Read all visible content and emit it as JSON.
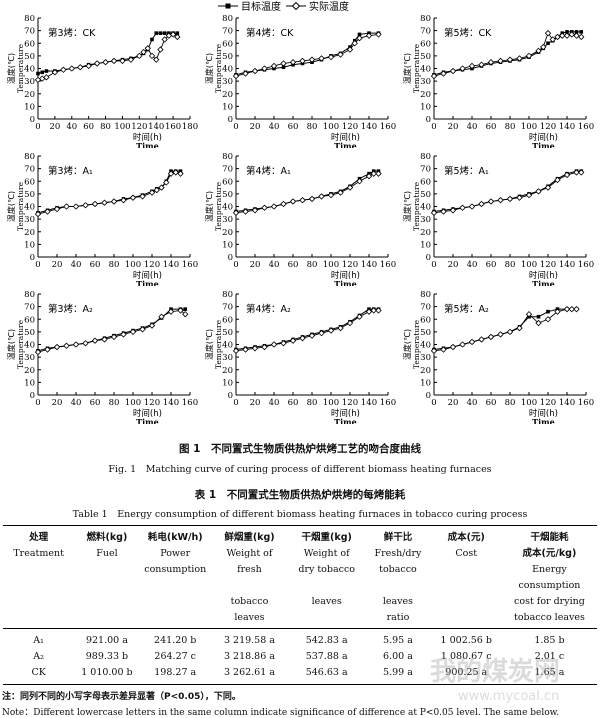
{
  "legend": {
    "target": "目标温度",
    "actual": "实际温度"
  },
  "axis_common": {
    "ylabel_cn": "温度(℃)",
    "ylabel_en": "Temperature",
    "xlabel_cn": "时间(h)",
    "xlabel_en": "Time"
  },
  "figure": {
    "caption_cn": "图 1　不同置式生物质供热炉烘烤工艺的吻合度曲线",
    "caption_en": "Fig. 1　Matching curve of curing process of different biomass heating furnaces"
  },
  "chart_data": [
    {
      "type": "line",
      "title": "第3烤：CK",
      "xlabel": "时间(h)",
      "ylabel": "温度(℃)",
      "xlim": [
        0,
        180
      ],
      "ylim": [
        0,
        80
      ],
      "xticks": [
        0,
        20,
        40,
        60,
        80,
        100,
        120,
        140,
        160,
        180
      ],
      "yticks": [
        0,
        10,
        20,
        30,
        40,
        50,
        60,
        70,
        80
      ],
      "series": [
        {
          "name": "目标温度",
          "x": [
            0,
            5,
            10,
            20,
            30,
            40,
            50,
            60,
            70,
            80,
            90,
            100,
            110,
            120,
            125,
            130,
            135,
            140,
            145,
            150,
            155,
            160,
            165
          ],
          "y": [
            36,
            37,
            38,
            38,
            39,
            40,
            41,
            43,
            44,
            45,
            46,
            47,
            48,
            50,
            52,
            55,
            63,
            68,
            68,
            68,
            68,
            68,
            68
          ]
        },
        {
          "name": "实际温度",
          "x": [
            0,
            5,
            10,
            20,
            30,
            40,
            50,
            60,
            70,
            80,
            90,
            100,
            110,
            120,
            125,
            130,
            135,
            140,
            145,
            150,
            155,
            160,
            165
          ],
          "y": [
            31,
            32,
            33,
            37,
            39,
            40,
            41,
            42,
            44,
            45,
            46,
            46,
            47,
            50,
            53,
            56,
            50,
            47,
            55,
            63,
            66,
            67,
            65
          ]
        }
      ]
    },
    {
      "type": "line",
      "title": "第4烤：CK",
      "xlabel": "时间(h)",
      "ylabel": "温度(℃)",
      "xlim": [
        0,
        160
      ],
      "ylim": [
        0,
        80
      ],
      "xticks": [
        0,
        20,
        40,
        60,
        80,
        100,
        120,
        140,
        160
      ],
      "yticks": [
        0,
        10,
        20,
        30,
        40,
        50,
        60,
        70,
        80
      ],
      "series": [
        {
          "name": "目标温度",
          "x": [
            0,
            10,
            20,
            30,
            40,
            50,
            60,
            70,
            80,
            90,
            100,
            110,
            120,
            125,
            130,
            140,
            150
          ],
          "y": [
            35,
            37,
            38,
            39,
            40,
            41,
            43,
            44,
            45,
            47,
            50,
            52,
            57,
            62,
            67,
            68,
            68
          ]
        },
        {
          "name": "实际温度",
          "x": [
            0,
            10,
            20,
            30,
            40,
            50,
            60,
            70,
            80,
            90,
            100,
            110,
            120,
            125,
            130,
            140,
            150
          ],
          "y": [
            34,
            36,
            38,
            40,
            42,
            44,
            45,
            46,
            47,
            48,
            49,
            51,
            55,
            60,
            64,
            66,
            67
          ]
        }
      ]
    },
    {
      "type": "line",
      "title": "第5烤：CK",
      "xlabel": "时间(h)",
      "ylabel": "温度(℃)",
      "xlim": [
        0,
        160
      ],
      "ylim": [
        0,
        80
      ],
      "xticks": [
        0,
        20,
        40,
        60,
        80,
        100,
        120,
        140,
        160
      ],
      "yticks": [
        0,
        10,
        20,
        30,
        40,
        50,
        60,
        70,
        80
      ],
      "series": [
        {
          "name": "目标温度",
          "x": [
            0,
            10,
            20,
            30,
            40,
            50,
            60,
            70,
            80,
            90,
            100,
            110,
            115,
            120,
            125,
            130,
            135,
            140,
            145,
            150,
            155
          ],
          "y": [
            35,
            37,
            38,
            39,
            40,
            42,
            44,
            45,
            46,
            47,
            49,
            53,
            56,
            60,
            62,
            65,
            68,
            69,
            69,
            69,
            69
          ]
        },
        {
          "name": "实际温度",
          "x": [
            0,
            10,
            20,
            30,
            40,
            50,
            60,
            70,
            80,
            90,
            100,
            110,
            115,
            120,
            125,
            130,
            135,
            140,
            145,
            150,
            155
          ],
          "y": [
            34,
            36,
            38,
            40,
            42,
            43,
            45,
            46,
            47,
            48,
            50,
            54,
            57,
            68,
            63,
            65,
            66,
            66,
            67,
            66,
            65
          ]
        }
      ]
    },
    {
      "type": "line",
      "title": "第3烤：A₁",
      "xlabel": "时间(h)",
      "ylabel": "温度(℃)",
      "xlim": [
        0,
        160
      ],
      "ylim": [
        0,
        80
      ],
      "xticks": [
        0,
        20,
        40,
        60,
        80,
        100,
        120,
        140,
        160
      ],
      "yticks": [
        0,
        10,
        20,
        30,
        40,
        50,
        60,
        70,
        80
      ],
      "series": [
        {
          "name": "目标温度",
          "x": [
            0,
            10,
            20,
            30,
            40,
            50,
            60,
            70,
            80,
            90,
            100,
            110,
            120,
            125,
            130,
            135,
            140,
            145,
            150
          ],
          "y": [
            35,
            37,
            39,
            40,
            40,
            41,
            42,
            43,
            44,
            46,
            47,
            49,
            52,
            54,
            55,
            60,
            68,
            68,
            68
          ]
        },
        {
          "name": "实际温度",
          "x": [
            0,
            10,
            20,
            30,
            40,
            50,
            60,
            70,
            80,
            90,
            100,
            110,
            120,
            125,
            130,
            135,
            140,
            145,
            150
          ],
          "y": [
            34,
            36,
            38,
            40,
            40,
            41,
            42,
            43,
            44,
            45,
            47,
            48,
            51,
            53,
            55,
            59,
            66,
            67,
            66
          ]
        }
      ]
    },
    {
      "type": "line",
      "title": "第4烤：A₁",
      "xlabel": "时间(h)",
      "ylabel": "温度(℃)",
      "xlim": [
        0,
        160
      ],
      "ylim": [
        0,
        80
      ],
      "xticks": [
        0,
        20,
        40,
        60,
        80,
        100,
        120,
        140,
        160
      ],
      "yticks": [
        0,
        10,
        20,
        30,
        40,
        50,
        60,
        70,
        80
      ],
      "series": [
        {
          "name": "目标温度",
          "x": [
            0,
            10,
            20,
            30,
            40,
            50,
            60,
            70,
            80,
            90,
            100,
            110,
            120,
            130,
            140,
            145,
            150
          ],
          "y": [
            36,
            37,
            38,
            39,
            40,
            42,
            44,
            45,
            46,
            48,
            50,
            52,
            56,
            62,
            66,
            68,
            68
          ]
        },
        {
          "name": "实际温度",
          "x": [
            0,
            10,
            20,
            30,
            40,
            50,
            60,
            70,
            80,
            90,
            100,
            110,
            120,
            130,
            140,
            145,
            150
          ],
          "y": [
            35,
            36,
            37,
            39,
            40,
            42,
            44,
            45,
            46,
            48,
            49,
            51,
            55,
            60,
            64,
            66,
            66
          ]
        }
      ]
    },
    {
      "type": "line",
      "title": "第5烤：A₁",
      "xlabel": "时间(h)",
      "ylabel": "温度(℃)",
      "xlim": [
        0,
        160
      ],
      "ylim": [
        0,
        80
      ],
      "xticks": [
        0,
        20,
        40,
        60,
        80,
        100,
        120,
        140,
        160
      ],
      "yticks": [
        0,
        10,
        20,
        30,
        40,
        50,
        60,
        70,
        80
      ],
      "series": [
        {
          "name": "目标温度",
          "x": [
            0,
            10,
            20,
            30,
            40,
            50,
            60,
            70,
            80,
            90,
            100,
            110,
            120,
            130,
            140,
            150,
            155
          ],
          "y": [
            36,
            37,
            38,
            39,
            40,
            42,
            44,
            45,
            46,
            48,
            50,
            52,
            56,
            62,
            66,
            68,
            68
          ]
        },
        {
          "name": "实际温度",
          "x": [
            0,
            10,
            20,
            30,
            40,
            50,
            60,
            70,
            80,
            90,
            100,
            110,
            120,
            130,
            140,
            150,
            155
          ],
          "y": [
            35,
            36,
            37,
            39,
            40,
            42,
            44,
            45,
            46,
            47,
            49,
            52,
            55,
            61,
            65,
            67,
            67
          ]
        }
      ]
    },
    {
      "type": "line",
      "title": "第3烤：A₂",
      "xlabel": "时间(h)",
      "ylabel": "温度(℃)",
      "xlim": [
        0,
        160
      ],
      "ylim": [
        0,
        80
      ],
      "xticks": [
        0,
        20,
        40,
        60,
        80,
        100,
        120,
        140,
        160
      ],
      "yticks": [
        0,
        10,
        20,
        30,
        40,
        50,
        60,
        70,
        80
      ],
      "series": [
        {
          "name": "目标温度",
          "x": [
            0,
            10,
            20,
            30,
            40,
            50,
            60,
            70,
            80,
            90,
            100,
            110,
            120,
            130,
            140,
            150,
            155
          ],
          "y": [
            35,
            37,
            38,
            39,
            40,
            41,
            43,
            45,
            47,
            49,
            51,
            53,
            56,
            61,
            68,
            68,
            68
          ]
        },
        {
          "name": "实际温度",
          "x": [
            0,
            10,
            20,
            30,
            40,
            50,
            60,
            70,
            80,
            90,
            100,
            110,
            120,
            130,
            140,
            150,
            155
          ],
          "y": [
            34,
            36,
            38,
            39,
            40,
            41,
            43,
            44,
            46,
            48,
            50,
            52,
            55,
            62,
            66,
            67,
            64
          ]
        }
      ]
    },
    {
      "type": "line",
      "title": "第4烤：A₂",
      "xlabel": "时间(h)",
      "ylabel": "温度(℃)",
      "xlim": [
        0,
        160
      ],
      "ylim": [
        0,
        80
      ],
      "xticks": [
        0,
        20,
        40,
        60,
        80,
        100,
        120,
        140,
        160
      ],
      "yticks": [
        0,
        10,
        20,
        30,
        40,
        50,
        60,
        70,
        80
      ],
      "series": [
        {
          "name": "目标温度",
          "x": [
            0,
            10,
            20,
            30,
            40,
            50,
            60,
            70,
            80,
            90,
            100,
            110,
            120,
            130,
            140,
            145,
            150
          ],
          "y": [
            36,
            37,
            38,
            39,
            40,
            42,
            44,
            46,
            48,
            50,
            52,
            54,
            58,
            63,
            68,
            68,
            68
          ]
        },
        {
          "name": "实际温度",
          "x": [
            0,
            10,
            20,
            30,
            40,
            50,
            60,
            70,
            80,
            90,
            100,
            110,
            120,
            130,
            140,
            145,
            150
          ],
          "y": [
            35,
            36,
            37,
            38,
            40,
            41,
            43,
            45,
            47,
            49,
            51,
            53,
            57,
            62,
            66,
            67,
            67
          ]
        }
      ]
    },
    {
      "type": "line",
      "title": "第5烤：A₂",
      "xlabel": "时间(h)",
      "ylabel": "温度(℃)",
      "xlim": [
        0,
        160
      ],
      "ylim": [
        0,
        80
      ],
      "xticks": [
        0,
        20,
        40,
        60,
        80,
        100,
        120,
        140,
        160
      ],
      "yticks": [
        0,
        10,
        20,
        30,
        40,
        50,
        60,
        70,
        80
      ],
      "series": [
        {
          "name": "目标温度",
          "x": [
            0,
            10,
            20,
            30,
            40,
            50,
            60,
            70,
            80,
            90,
            100,
            110,
            120,
            130,
            140,
            145,
            150
          ],
          "y": [
            36,
            37,
            38,
            40,
            42,
            44,
            46,
            48,
            50,
            54,
            62,
            62,
            66,
            68,
            68,
            68,
            68
          ]
        },
        {
          "name": "实际温度",
          "x": [
            0,
            10,
            20,
            30,
            40,
            50,
            60,
            70,
            80,
            90,
            100,
            110,
            120,
            130,
            140,
            145,
            150
          ],
          "y": [
            35,
            36,
            38,
            40,
            42,
            44,
            46,
            48,
            50,
            53,
            64,
            57,
            60,
            66,
            68,
            68,
            68
          ]
        }
      ]
    }
  ],
  "table": {
    "caption_cn": "表 1　不同置式生物质供热炉烘烤的每烤能耗",
    "caption_en": "Table 1　Energy consumption of different biomass heating furnaces in tobacco curing process",
    "header_cn": [
      "处理",
      "燃料(kg)",
      "耗电(kW/h)",
      "鲜烟重(kg)",
      "干烟重(kg)",
      "鲜干比",
      "成本(元)",
      "干烟能耗"
    ],
    "header_en": [
      [
        "Treatment",
        "Fuel",
        "Power",
        "Weight of",
        "Weight of",
        "Fresh/dry",
        "Cost",
        "成本(元/kg)"
      ],
      [
        "",
        "",
        "consumption",
        "fresh",
        "dry tobacco",
        "tobacco",
        "",
        "Energy consumption"
      ],
      [
        "",
        "",
        "",
        "tobacco",
        "leaves",
        "leaves",
        "",
        "cost for drying"
      ],
      [
        "",
        "",
        "",
        "leaves",
        "",
        "ratio",
        "",
        "tobacco leaves"
      ]
    ],
    "rows": [
      [
        "A₁",
        "921.00 a",
        "241.20 b",
        "3 219.58 a",
        "542.83 a",
        "5.95 a",
        "1 002.56 b",
        "1.85 b"
      ],
      [
        "A₂",
        "989.33 b",
        "264.27 c",
        "3 218.86 a",
        "537.88 a",
        "6.00 a",
        "1 080.67 c",
        "2.01 c"
      ],
      [
        "CK",
        "1 010.00 b",
        "198.27 a",
        "3 262.61 a",
        "546.63 a",
        "5.99 a",
        "900.25 a",
        "1.65 a"
      ]
    ],
    "note_cn": "注：同列不同的小写字母表示差异显著（P<0.05），下同。",
    "note_en": "Note：Different lowercase letters in the same column indicate significance of difference at P<0.05 level. The same below."
  },
  "watermark": {
    "cn": "我的煤炭网",
    "url": "www.mycoal.cn"
  }
}
